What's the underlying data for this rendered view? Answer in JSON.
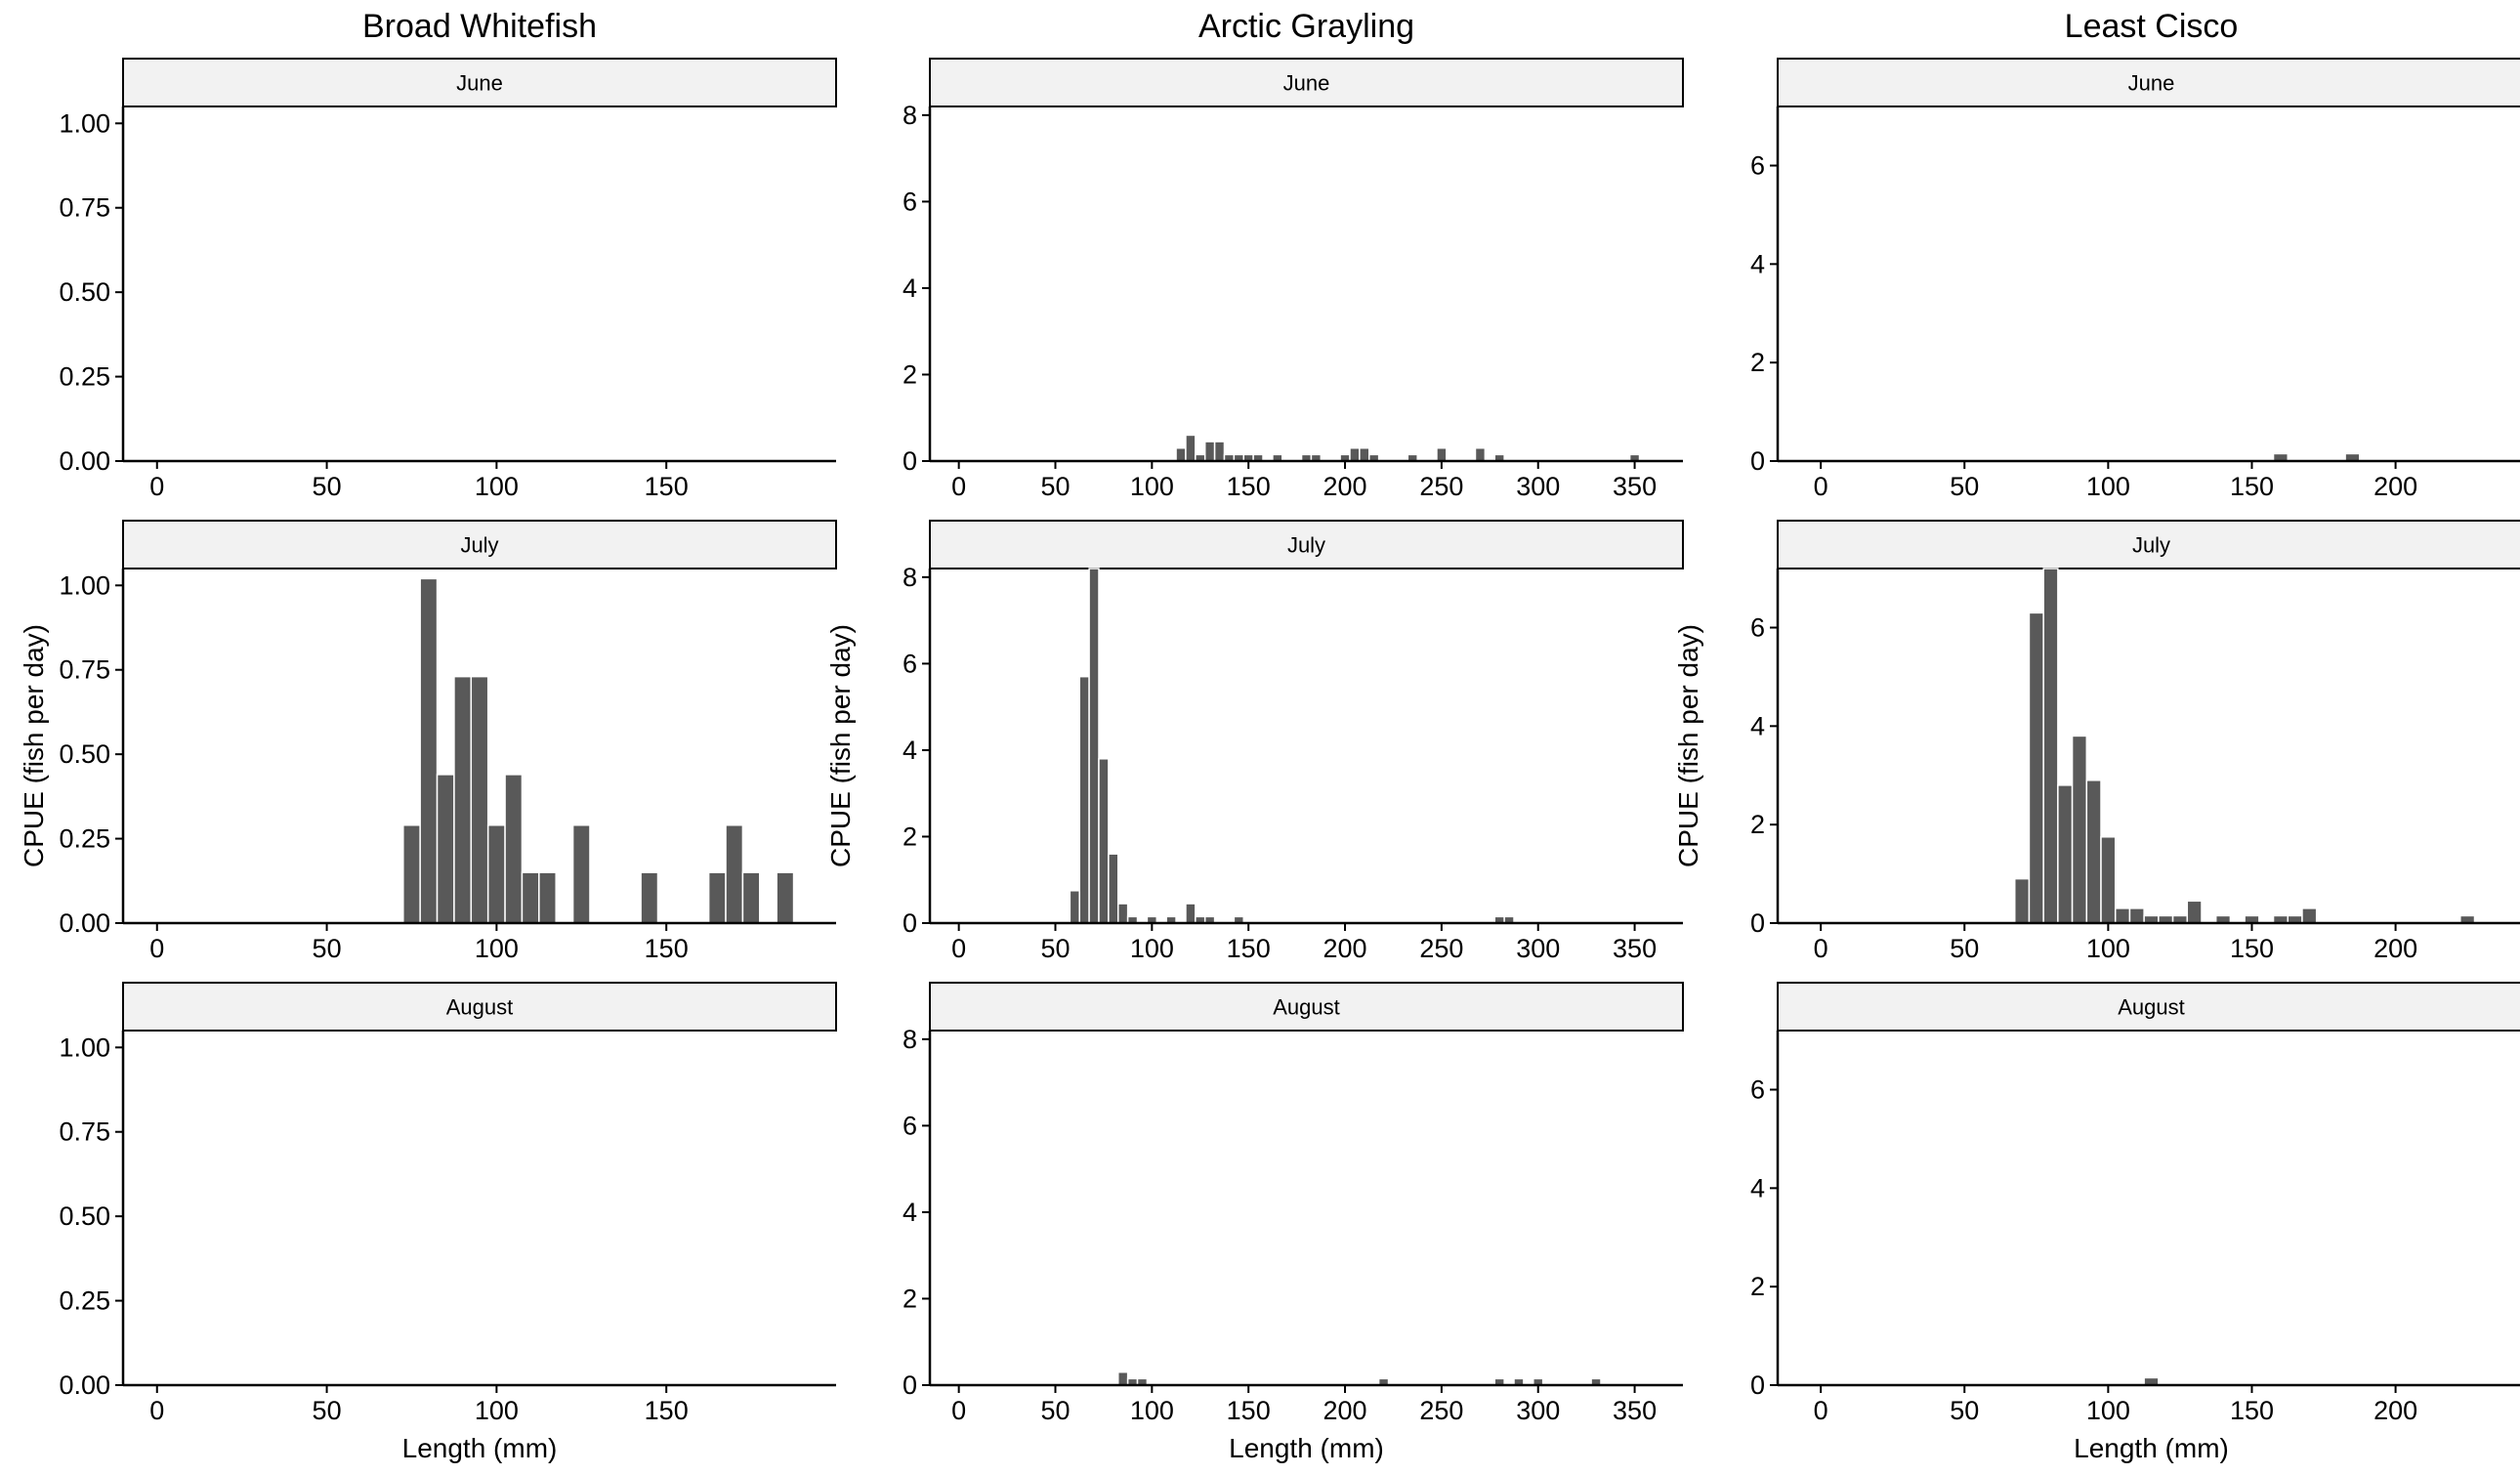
{
  "colors": {
    "bar": "#595959",
    "bar_stroke": "#ffffff",
    "strip_fill": "#f2f2f2",
    "axis": "#000000"
  },
  "chart_data": {
    "type": "bar",
    "bin_width_mm": 5,
    "rows": [
      "June",
      "July",
      "August"
    ],
    "xlabel": "Length (mm)",
    "ylabel": "CPUE (fish per day)",
    "grid": false,
    "species": [
      {
        "title": "Broad Whitefish",
        "ylim": [
          0,
          1.05
        ],
        "yticks": [
          "0.00",
          "0.25",
          "0.50",
          "0.75",
          "1.00"
        ],
        "xlim": [
          -10,
          200
        ],
        "xticks": [
          0,
          50,
          100,
          150
        ],
        "panels": [
          {
            "month": "June",
            "x": [],
            "values": []
          },
          {
            "month": "July",
            "x": [
              75,
              80,
              85,
              90,
              95,
              100,
              105,
              110,
              115,
              125,
              145,
              165,
              170,
              175,
              185
            ],
            "values": [
              0.29,
              1.02,
              0.44,
              0.73,
              0.73,
              0.29,
              0.44,
              0.15,
              0.15,
              0.29,
              0.15,
              0.15,
              0.29,
              0.15,
              0.15
            ]
          },
          {
            "month": "August",
            "x": [],
            "values": []
          }
        ]
      },
      {
        "title": "Arctic Grayling",
        "ylim": [
          0,
          8.2
        ],
        "yticks": [
          "0",
          "2",
          "4",
          "6",
          "8"
        ],
        "xlim": [
          -15,
          375
        ],
        "xticks": [
          0,
          50,
          100,
          150,
          200,
          250,
          300,
          350
        ],
        "panels": [
          {
            "month": "June",
            "x": [
              115,
              120,
              125,
              130,
              135,
              140,
              145,
              150,
              155,
              165,
              180,
              185,
              200,
              205,
              210,
              215,
              235,
              250,
              270,
              280,
              350
            ],
            "values": [
              0.3,
              0.6,
              0.15,
              0.45,
              0.45,
              0.15,
              0.15,
              0.15,
              0.15,
              0.15,
              0.15,
              0.15,
              0.15,
              0.3,
              0.3,
              0.15,
              0.15,
              0.3,
              0.3,
              0.15,
              0.15
            ]
          },
          {
            "month": "July",
            "x": [
              60,
              65,
              70,
              75,
              80,
              85,
              90,
              100,
              110,
              120,
              125,
              130,
              145,
              280,
              285
            ],
            "values": [
              0.75,
              5.7,
              8.2,
              3.8,
              1.6,
              0.45,
              0.15,
              0.15,
              0.15,
              0.45,
              0.15,
              0.15,
              0.15,
              0.15,
              0.15
            ]
          },
          {
            "month": "August",
            "x": [
              85,
              90,
              95,
              220,
              280,
              290,
              300,
              330
            ],
            "values": [
              0.3,
              0.15,
              0.15,
              0.15,
              0.15,
              0.15,
              0.15,
              0.15
            ]
          }
        ]
      },
      {
        "title": "Least Cisco",
        "ylim": [
          0,
          7.2
        ],
        "yticks": [
          "0",
          "2",
          "4",
          "6"
        ],
        "xlim": [
          -15,
          245
        ],
        "xticks": [
          0,
          50,
          100,
          150,
          200
        ],
        "panels": [
          {
            "month": "June",
            "x": [
              160,
              185
            ],
            "values": [
              0.15,
              0.15
            ]
          },
          {
            "month": "July",
            "x": [
              70,
              75,
              80,
              85,
              90,
              95,
              100,
              105,
              110,
              115,
              120,
              125,
              130,
              140,
              150,
              160,
              165,
              170,
              225
            ],
            "values": [
              0.9,
              6.3,
              7.2,
              2.8,
              3.8,
              2.9,
              1.75,
              0.3,
              0.3,
              0.15,
              0.15,
              0.15,
              0.45,
              0.15,
              0.15,
              0.15,
              0.15,
              0.3,
              0.15
            ]
          },
          {
            "month": "August",
            "x": [
              115
            ],
            "values": [
              0.15
            ]
          }
        ]
      }
    ]
  }
}
